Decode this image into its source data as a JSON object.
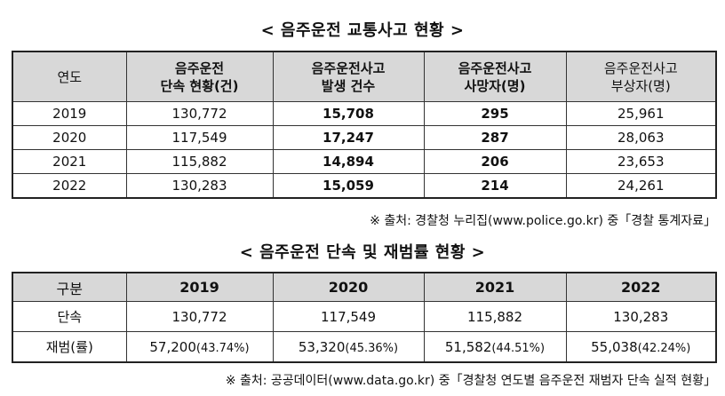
{
  "table1": {
    "title": "< 음주운전 교통사고 현황 >",
    "headers": {
      "year": "연도",
      "enforcement_1": "음주운전",
      "enforcement_2": "단속 현황(건)",
      "accidents_1": "음주운전사고",
      "accidents_2": "발생 건수",
      "deaths_1": "음주운전사고",
      "deaths_2": "사망자(명)",
      "injured_1": "음주운전사고",
      "injured_2": "부상자(명)"
    },
    "rows": [
      {
        "year": "2019",
        "enforcement": "130,772",
        "accidents": "15,708",
        "deaths": "295",
        "injured": "25,961"
      },
      {
        "year": "2020",
        "enforcement": "117,549",
        "accidents": "17,247",
        "deaths": "287",
        "injured": "28,063"
      },
      {
        "year": "2021",
        "enforcement": "115,882",
        "accidents": "14,894",
        "deaths": "206",
        "injured": "23,653"
      },
      {
        "year": "2022",
        "enforcement": "130,283",
        "accidents": "15,059",
        "deaths": "214",
        "injured": "24,261"
      }
    ],
    "source": "※ 출처: 경찰청 누리집(www.police.go.kr) 중「경찰 통계자료」"
  },
  "table2": {
    "title": "< 음주운전 단속 및 재범률 현황 >",
    "header_label": "구분",
    "years": [
      "2019",
      "2020",
      "2021",
      "2022"
    ],
    "row_enforcement_label": "단속",
    "enforcement": [
      "130,772",
      "117,549",
      "115,882",
      "130,283"
    ],
    "row_repeat_label": "재범(률)",
    "repeat_counts": [
      "57,200",
      "53,320",
      "51,582",
      "55,038"
    ],
    "repeat_rates": [
      "(43.74%)",
      "(45.36%)",
      "(44.51%)",
      "(42.24%)"
    ],
    "source": "※ 출처: 공공데이터(www.data.go.kr) 중「경찰청 연도별 음주운전 재범자 단속 실적 현황」"
  }
}
